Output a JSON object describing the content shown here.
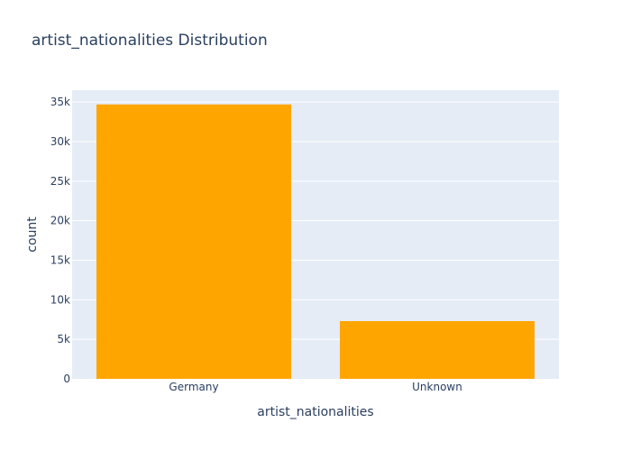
{
  "chart_data": {
    "type": "bar",
    "title": "artist_nationalities Distribution",
    "xlabel": "artist_nationalities",
    "ylabel": "count",
    "categories": [
      "Germany",
      "Unknown"
    ],
    "values": [
      34700,
      7300
    ],
    "ylim": [
      0,
      36500
    ],
    "yticks": [
      0,
      5000,
      10000,
      15000,
      20000,
      25000,
      30000,
      35000
    ],
    "ytick_labels": [
      "0",
      "5k",
      "10k",
      "15k",
      "20k",
      "25k",
      "30k",
      "35k"
    ],
    "grid": true,
    "legend": "none",
    "colors": {
      "bar": "#FFA500",
      "plot_background": "#E5ECF6",
      "grid": "#FFFFFF",
      "text": "#2A3F5F"
    }
  }
}
